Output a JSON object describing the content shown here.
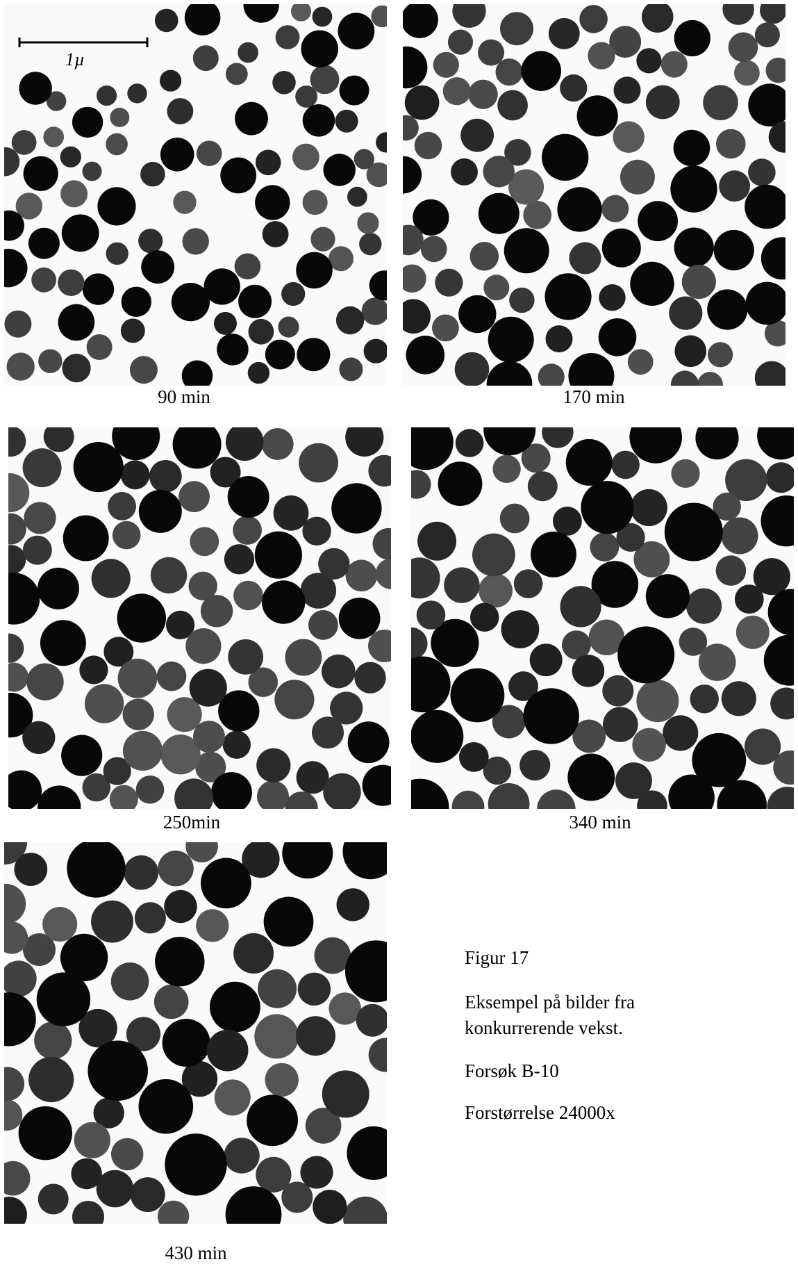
{
  "scale_bar": "1µ",
  "panels": [
    {
      "caption": "90 min"
    },
    {
      "caption": "170 min"
    },
    {
      "caption": "250min"
    },
    {
      "caption": "340 min"
    },
    {
      "caption": "430 min"
    }
  ],
  "figure": {
    "label": "Figur 17",
    "description": [
      "Eksempel på bilder fra",
      "konkurrerende vekst."
    ],
    "experiment": "Forsøk B-10",
    "magnification": "Forstørrelse 24000x"
  }
}
